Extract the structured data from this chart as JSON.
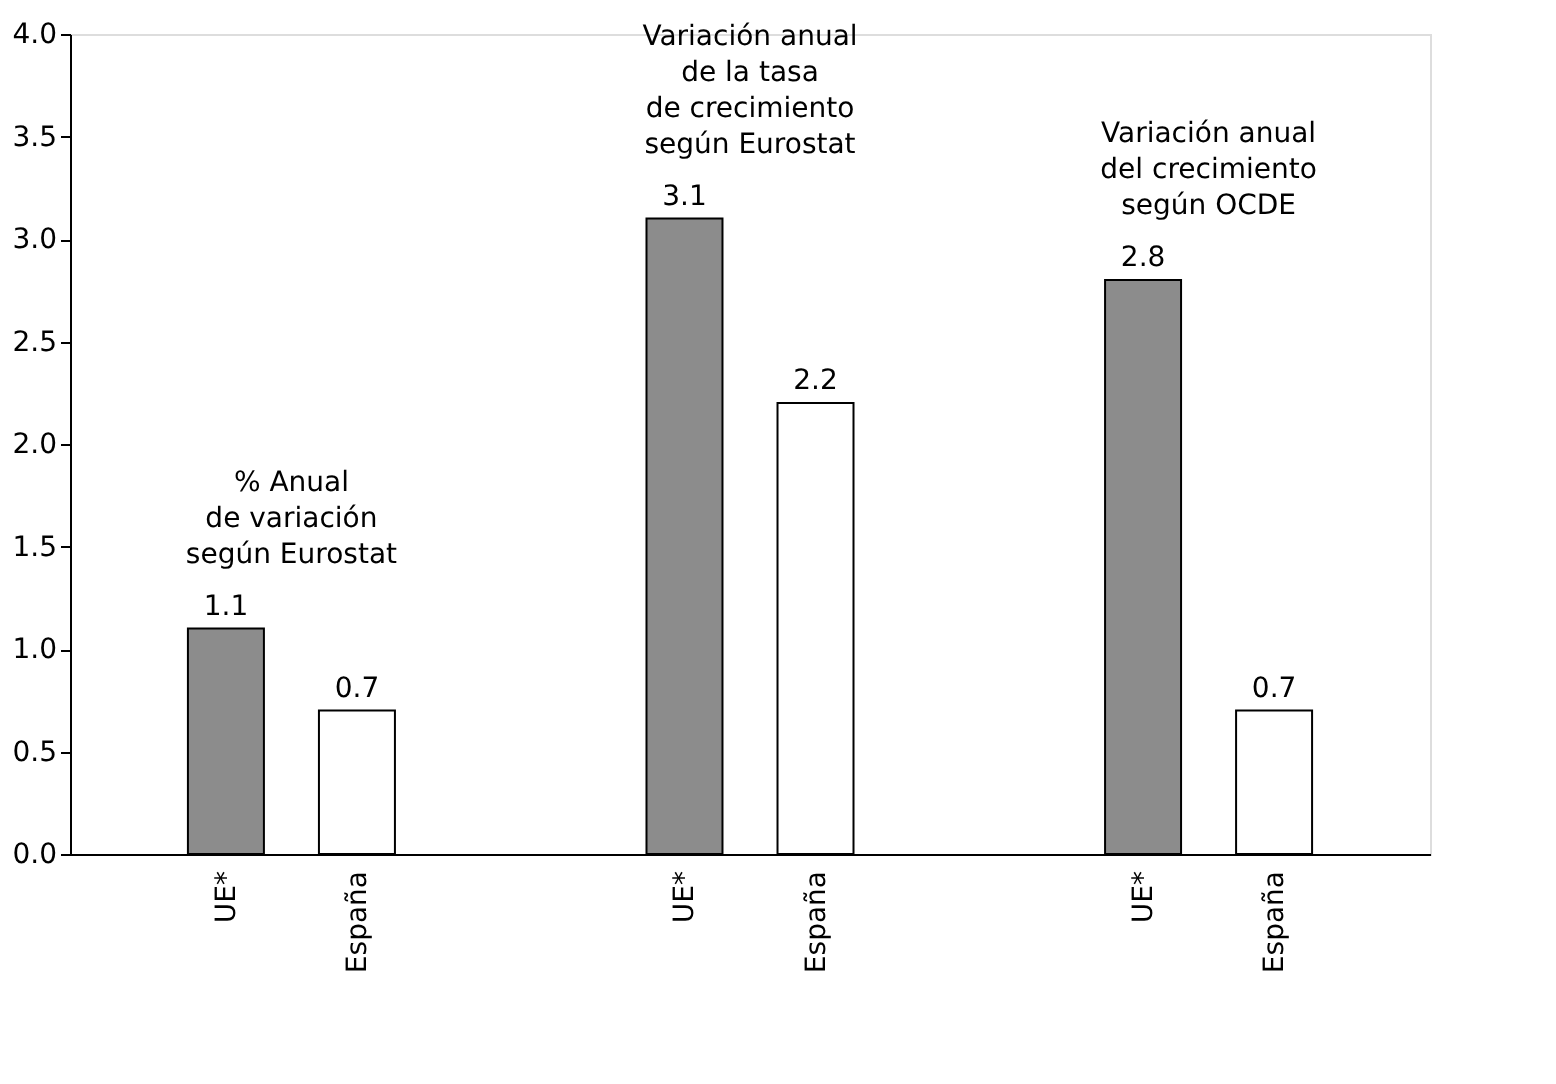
{
  "chart_data": {
    "type": "bar",
    "categories": [
      "UE*",
      "España",
      "UE*",
      "España",
      "UE*",
      "España"
    ],
    "values": [
      1.1,
      0.7,
      3.1,
      2.2,
      2.8,
      0.7
    ],
    "colors": [
      "#8c8c8c",
      "#ffffff",
      "#8c8c8c",
      "#ffffff",
      "#8c8c8c",
      "#ffffff"
    ],
    "ylim": [
      0,
      4
    ],
    "yticks": [
      {
        "value": 0,
        "label": "0.0"
      },
      0.5,
      {
        "value": 1,
        "label": "1.0"
      },
      1.5,
      {
        "value": 2,
        "label": "2.0"
      },
      2.5,
      {
        "value": 3,
        "label": "3.0"
      },
      3.5,
      {
        "value": 4,
        "label": "4.0"
      }
    ],
    "data_labels": true,
    "annotations": [
      "% Anual\nde variación\nsegún Eurostat",
      "Variación anual\nde la tasa\nde crecimiento\nsegún Eurostat",
      "Variación anual\ndel crecimiento\nsegún OCDE"
    ]
  }
}
